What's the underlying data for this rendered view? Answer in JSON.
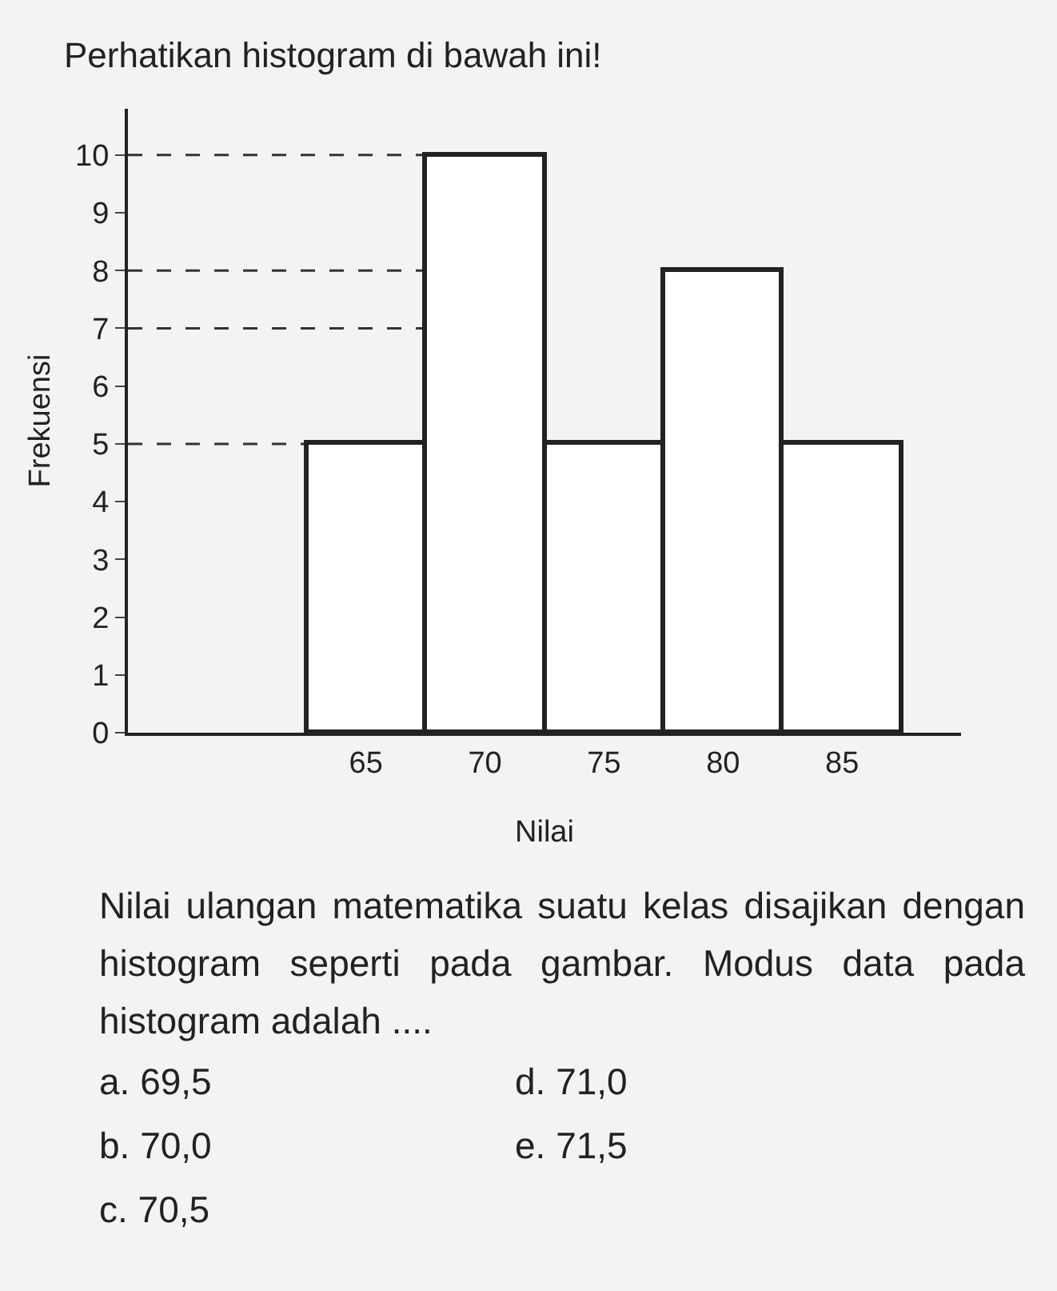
{
  "chart_data": {
    "type": "histogram",
    "title": "Perhatikan histogram di bawah ini!",
    "xlabel": "Nilai",
    "ylabel": "Frekuensi",
    "bins": [
      62.5,
      67.5,
      72.5,
      77.5,
      82.5,
      87.5
    ],
    "values": [
      5,
      10,
      5,
      8,
      5
    ],
    "color": "#ffffff",
    "xlim": [
      55,
      90
    ],
    "xticks": [
      65,
      70,
      75,
      80,
      85
    ],
    "ylim": [
      0,
      10.8
    ],
    "yticks": [
      0,
      1,
      2,
      3,
      4,
      5,
      6,
      7,
      8,
      9,
      10
    ],
    "grid": false,
    "ref_lines": [
      {
        "axis": "y",
        "value": 10,
        "line_style": "dashed"
      },
      {
        "axis": "y",
        "value": 8,
        "line_style": "dashed"
      },
      {
        "axis": "y",
        "value": 7,
        "line_style": "dashed"
      },
      {
        "axis": "y",
        "value": 5,
        "line_style": "dashed"
      }
    ],
    "annotations": [
      "Nilai ulangan matematika suatu kelas disajikan dengan histogram seperti pada gambar. Modus data pada histogram adalah ....",
      "a. 69,5",
      "b. 70,0",
      "c. 70,5",
      "d. 71,0",
      "e. 71,5"
    ]
  }
}
